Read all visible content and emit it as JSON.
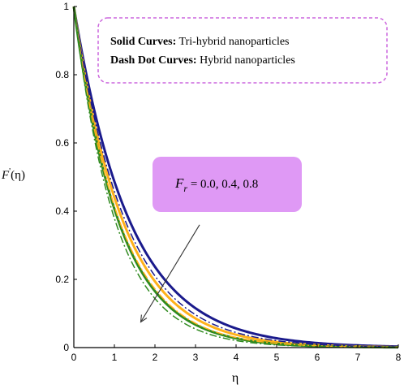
{
  "chart_data": {
    "type": "line",
    "title": "",
    "xlabel": "η",
    "ylabel_main": "F",
    "ylabel_prime": "'",
    "ylabel_arg": "(η)",
    "xlim": [
      0,
      8
    ],
    "ylim": [
      0,
      1
    ],
    "x_ticks": [
      "0",
      "1",
      "2",
      "3",
      "4",
      "5",
      "6",
      "7",
      "8"
    ],
    "y_ticks": [
      "0",
      "0.2",
      "0.4",
      "0.6",
      "0.8",
      "1"
    ],
    "grid": false,
    "legend": {
      "placement": "top-right",
      "line1_bold": "Solid Curves:",
      "line1_text": " Tri-hybrid nanoparticles",
      "line2_bold": "Dash Dot Curves:",
      "line2_text": " Hybrid nanoparticles",
      "border_color": "#cc66dd"
    },
    "annotation": {
      "var_main": "F",
      "var_sub": "r",
      "text": " = 0.0, 0.4, 0.8",
      "box_color": "#df99f5",
      "arrow_from": [
        3.1,
        0.36
      ],
      "arrow_to": [
        1.65,
        0.075
      ]
    },
    "series": [
      {
        "style": "solid",
        "color": "#1a1a8c",
        "decay": 0.72
      },
      {
        "style": "solid",
        "color": "#ffb11a",
        "decay": 0.82
      },
      {
        "style": "solid",
        "color": "#2f8a1f",
        "decay": 0.9
      },
      {
        "style": "dashdot",
        "color": "#1a1a8c",
        "decay": 0.78
      },
      {
        "style": "dashdot",
        "color": "#ffb11a",
        "decay": 0.88
      },
      {
        "style": "dashdot",
        "color": "#2f8a1f",
        "decay": 0.97
      }
    ]
  }
}
